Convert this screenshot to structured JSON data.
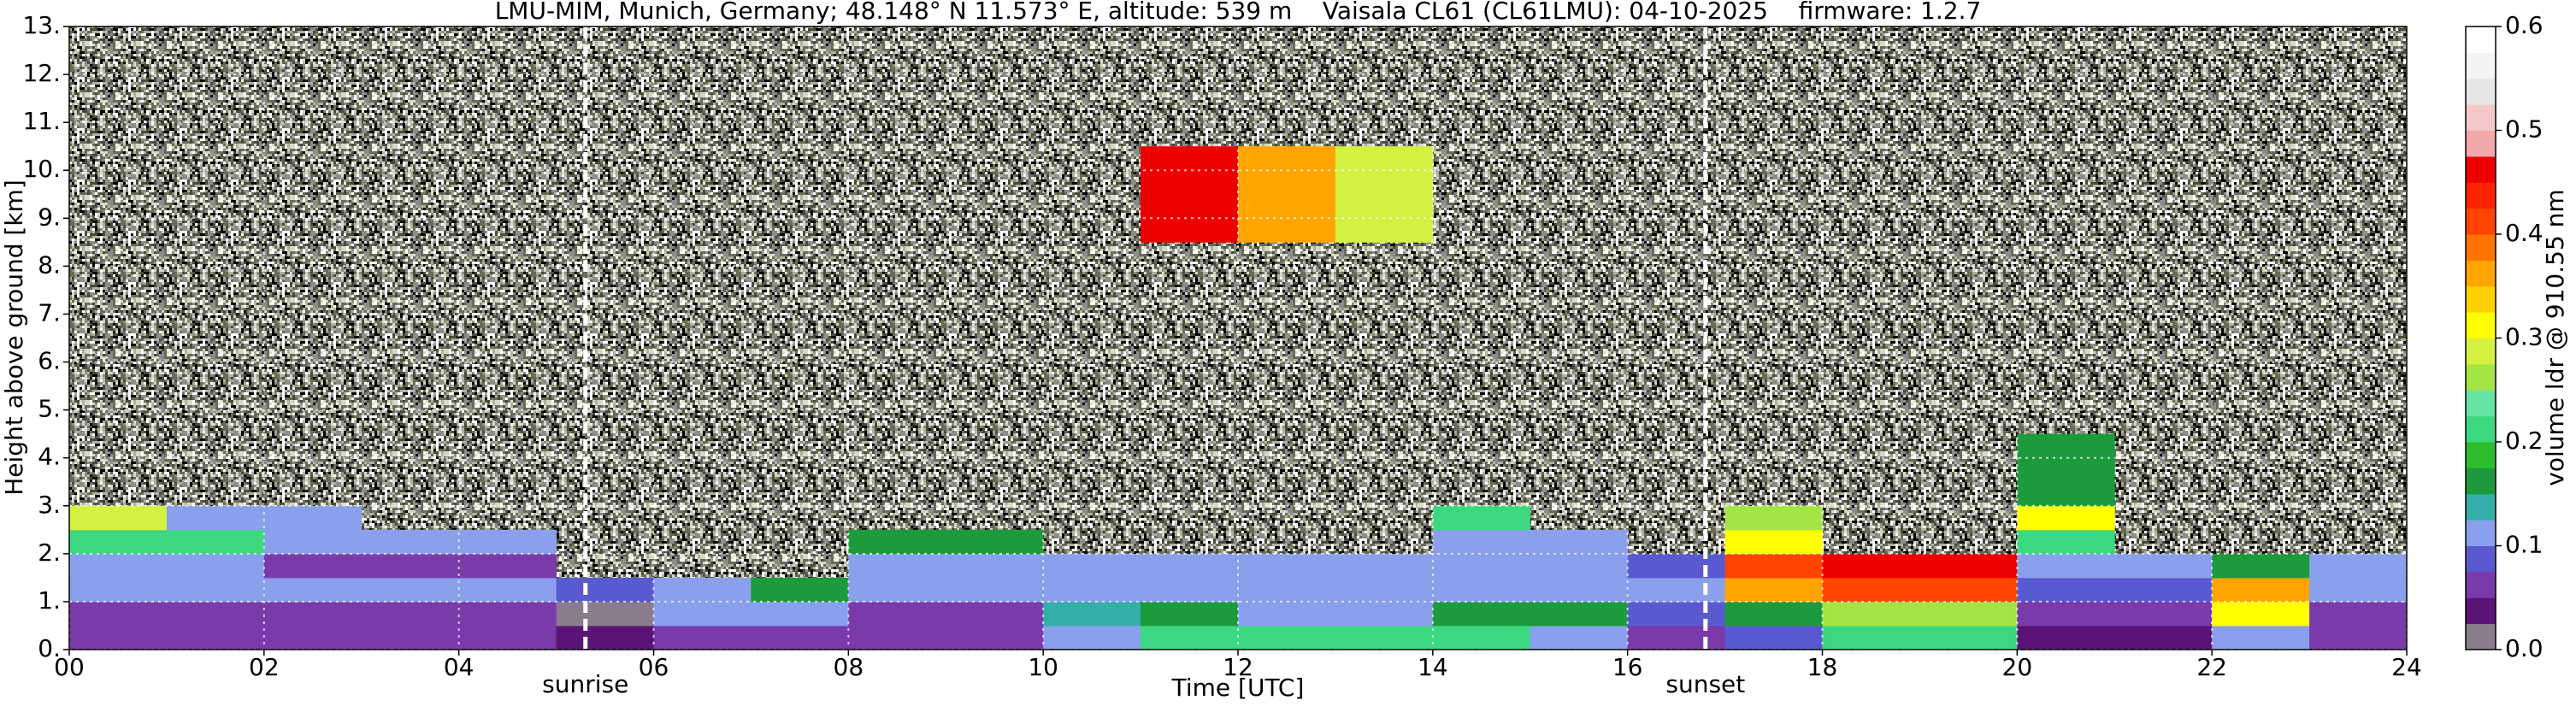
{
  "chart_data": {
    "type": "heatmap",
    "title": "LMU-MIM, Munich, Germany; 48.148° N 11.573° E, altitude: 539 m    Vaisala CL61 (CL61LMU): 04-10-2025    firmware: 1.2.7",
    "x_label": "Time [UTC]",
    "y_label": "Height above ground [km]",
    "colorbar_label": "volume ldr @ 910.55 nm",
    "x_edges": [
      0,
      1,
      2,
      3,
      4,
      5,
      6,
      7,
      8,
      9,
      10,
      11,
      12,
      13,
      14,
      15,
      16,
      17,
      18,
      19,
      20,
      21,
      22,
      23,
      24
    ],
    "y_edges": [
      0,
      0.5,
      1,
      1.5,
      2,
      2.5,
      3,
      4.5,
      8.5,
      10.5,
      13
    ],
    "values": [
      [
        0.05,
        0.05,
        0.05,
        0.05,
        0.05,
        0.03,
        0.05,
        0.05,
        0.05,
        0.05,
        0.12,
        0.2,
        0.2,
        0.2,
        0.2,
        0.1,
        0.06,
        0.08,
        0.2,
        0.2,
        0.04,
        0.04,
        0.1,
        0.05
      ],
      [
        0.07,
        0.07,
        0.07,
        0.07,
        0.07,
        0.02,
        0.1,
        0.1,
        0.06,
        0.06,
        0.13,
        0.15,
        0.12,
        0.12,
        0.15,
        0.15,
        0.08,
        0.15,
        0.25,
        0.25,
        0.05,
        0.05,
        0.3,
        0.06
      ],
      [
        0.1,
        0.1,
        0.1,
        0.1,
        0.1,
        0.08,
        0.12,
        0.15,
        0.1,
        0.1,
        0.12,
        0.12,
        0.12,
        0.12,
        0.1,
        0.1,
        0.1,
        0.35,
        0.4,
        0.4,
        0.08,
        0.08,
        0.35,
        0.1
      ],
      [
        0.12,
        0.12,
        0.05,
        0.05,
        0.05,
        null,
        null,
        null,
        0.1,
        0.1,
        0.12,
        0.1,
        0.1,
        0.1,
        0.1,
        0.1,
        0.08,
        0.4,
        0.45,
        0.45,
        0.12,
        0.12,
        0.15,
        0.12
      ],
      [
        0.2,
        0.2,
        0.12,
        0.1,
        0.1,
        null,
        null,
        null,
        0.15,
        0.15,
        null,
        null,
        null,
        null,
        0.12,
        0.12,
        null,
        0.3,
        null,
        null,
        0.2,
        null,
        null,
        null
      ],
      [
        0.28,
        0.12,
        0.12,
        null,
        null,
        null,
        null,
        null,
        null,
        null,
        null,
        null,
        null,
        null,
        0.2,
        null,
        null,
        0.25,
        null,
        null,
        0.3,
        null,
        null,
        null
      ],
      [
        null,
        null,
        null,
        null,
        null,
        null,
        null,
        null,
        null,
        null,
        null,
        null,
        null,
        null,
        null,
        null,
        null,
        null,
        null,
        null,
        0.15,
        null,
        null,
        null
      ],
      [
        null,
        null,
        null,
        null,
        null,
        null,
        null,
        null,
        null,
        null,
        null,
        null,
        null,
        null,
        null,
        null,
        null,
        null,
        null,
        null,
        null,
        null,
        null,
        null
      ],
      [
        null,
        null,
        null,
        null,
        null,
        null,
        null,
        null,
        null,
        null,
        null,
        0.45,
        0.35,
        0.28,
        null,
        null,
        null,
        null,
        null,
        null,
        null,
        null,
        null,
        null
      ],
      [
        null,
        null,
        null,
        null,
        null,
        null,
        null,
        null,
        null,
        null,
        null,
        null,
        null,
        null,
        null,
        null,
        null,
        null,
        null,
        null,
        null,
        null,
        null,
        null
      ]
    ],
    "xlim": [
      0,
      24
    ],
    "xticks": [
      {
        "value": 0,
        "label": "00"
      },
      {
        "value": 2,
        "label": "02"
      },
      {
        "value": 4,
        "label": "04"
      },
      {
        "value": 6,
        "label": "06"
      },
      {
        "value": 8,
        "label": "08"
      },
      {
        "value": 10,
        "label": "10"
      },
      {
        "value": 12,
        "label": "12"
      },
      {
        "value": 14,
        "label": "14"
      },
      {
        "value": 16,
        "label": "16"
      },
      {
        "value": 18,
        "label": "18"
      },
      {
        "value": 20,
        "label": "20"
      },
      {
        "value": 22,
        "label": "22"
      },
      {
        "value": 24,
        "label": "24"
      }
    ],
    "ylim": [
      0,
      13
    ],
    "yticks": [
      {
        "value": 0,
        "label": "0."
      },
      {
        "value": 1,
        "label": "1."
      },
      {
        "value": 2,
        "label": "2."
      },
      {
        "value": 3,
        "label": "3."
      },
      {
        "value": 4,
        "label": "4."
      },
      {
        "value": 5,
        "label": "5."
      },
      {
        "value": 6,
        "label": "6."
      },
      {
        "value": 7,
        "label": "7."
      },
      {
        "value": 8,
        "label": "8."
      },
      {
        "value": 9,
        "label": "9."
      },
      {
        "value": 10,
        "label": "10."
      },
      {
        "value": 11,
        "label": "11."
      },
      {
        "value": 12,
        "label": "12."
      },
      {
        "value": 13,
        "label": "13."
      }
    ],
    "clim": [
      0,
      0.6
    ],
    "cticks": [
      {
        "value": 0,
        "label": "0.0"
      },
      {
        "value": 0.1,
        "label": "0.1"
      },
      {
        "value": 0.2,
        "label": "0.2"
      },
      {
        "value": 0.3,
        "label": "0.3"
      },
      {
        "value": 0.4,
        "label": "0.4"
      },
      {
        "value": 0.5,
        "label": "0.5"
      },
      {
        "value": 0.6,
        "label": "0.6"
      }
    ],
    "colormap": [
      "#8a7c8c",
      "#5a1478",
      "#7a3aaa",
      "#5a5ad0",
      "#8aa0ec",
      "#34b0a8",
      "#1c9a3c",
      "#2cbc2c",
      "#3cd880",
      "#66e4a4",
      "#a4e444",
      "#d4f040",
      "#ffff00",
      "#ffd000",
      "#ffa400",
      "#ff7400",
      "#ff4400",
      "#ff2200",
      "#ee0000",
      "#f2a8a8",
      "#f4c8c8",
      "#e6e6e6",
      "#f4f4f4",
      "#ffffff"
    ],
    "grid": true,
    "annotations": [
      {
        "text": "sunrise",
        "x": 5.3
      },
      {
        "text": "sunset",
        "x": 16.8
      }
    ]
  }
}
